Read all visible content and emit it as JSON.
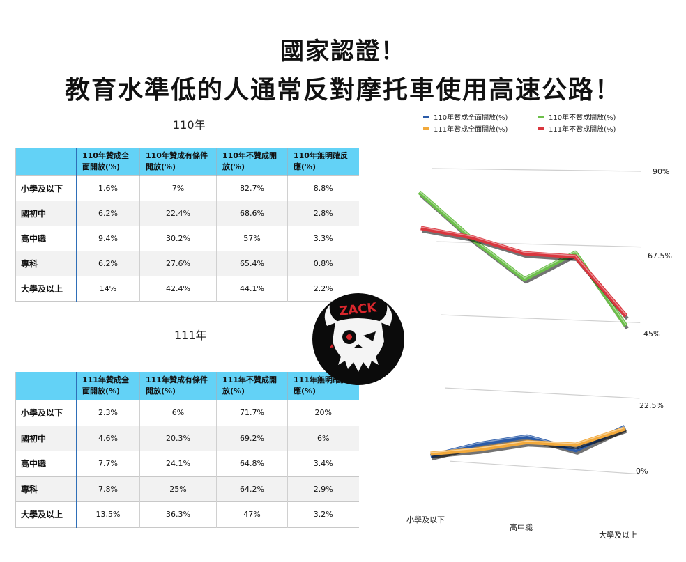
{
  "headline": {
    "line1": "國家認證！",
    "line2": "教育水準低的人通常反對摩托車使用高速公路！"
  },
  "table_110": {
    "year_label": "110年",
    "headers": [
      "",
      "110年贊成全面開放(%)",
      "110年贊成有條件開放(%)",
      "110年不贊成開放(%)",
      "110年無明確反應(%)"
    ],
    "rows": [
      [
        "小學及以下",
        "1.6%",
        "7%",
        "82.7%",
        "8.8%"
      ],
      [
        "國初中",
        "6.2%",
        "22.4%",
        "68.6%",
        "2.8%"
      ],
      [
        "高中職",
        "9.4%",
        "30.2%",
        "57%",
        "3.3%"
      ],
      [
        "專科",
        "6.2%",
        "27.6%",
        "65.4%",
        "0.8%"
      ],
      [
        "大學及以上",
        "14%",
        "42.4%",
        "44.1%",
        "2.2%"
      ]
    ]
  },
  "table_111": {
    "year_label": "111年",
    "headers": [
      "",
      "111年贊成全面開放(%)",
      "111年贊成有條件開放(%)",
      "111年不贊成開放(%)",
      "111年無明確反應(%)"
    ],
    "rows": [
      [
        "小學及以下",
        "2.3%",
        "6%",
        "71.7%",
        "20%"
      ],
      [
        "國初中",
        "4.6%",
        "20.3%",
        "69.2%",
        "6%"
      ],
      [
        "高中職",
        "7.7%",
        "24.1%",
        "64.8%",
        "3.4%"
      ],
      [
        "專科",
        "7.8%",
        "25%",
        "64.2%",
        "2.9%"
      ],
      [
        "大學及以上",
        "13.5%",
        "36.3%",
        "47%",
        "3.2%"
      ]
    ]
  },
  "chart_data": {
    "type": "line",
    "title": "",
    "xlabel": "",
    "ylabel": "",
    "categories": [
      "小學及以下",
      "國初中",
      "高中職",
      "專科",
      "大學及以上"
    ],
    "x_tick_labels": [
      "小學及以下",
      "高中職",
      "大學及以上"
    ],
    "y_tick_labels": [
      "90%",
      "67.5%",
      "45%",
      "22.5%",
      "0%"
    ],
    "ylim": [
      0,
      90
    ],
    "grid": true,
    "legend_position": "top",
    "style": "3d-perspective ribbon lines",
    "series": [
      {
        "name": "110年贊成全面開放(%)",
        "color": "#2b5ba8",
        "values": [
          1.6,
          6.2,
          9.4,
          6.2,
          14
        ]
      },
      {
        "name": "110年不贊成開放(%)",
        "color": "#6cbf4a",
        "values": [
          82.7,
          68.6,
          57,
          65.4,
          44.1
        ]
      },
      {
        "name": "111年贊成全面開放(%)",
        "color": "#f2a93b",
        "values": [
          2.3,
          4.6,
          7.7,
          7.8,
          13.5
        ]
      },
      {
        "name": "111年不贊成開放(%)",
        "color": "#d9363e",
        "values": [
          71.7,
          69.2,
          64.8,
          64.2,
          47
        ]
      }
    ]
  },
  "logo": {
    "text": "ZACK",
    "icon": "bull-skull-logo-icon"
  }
}
